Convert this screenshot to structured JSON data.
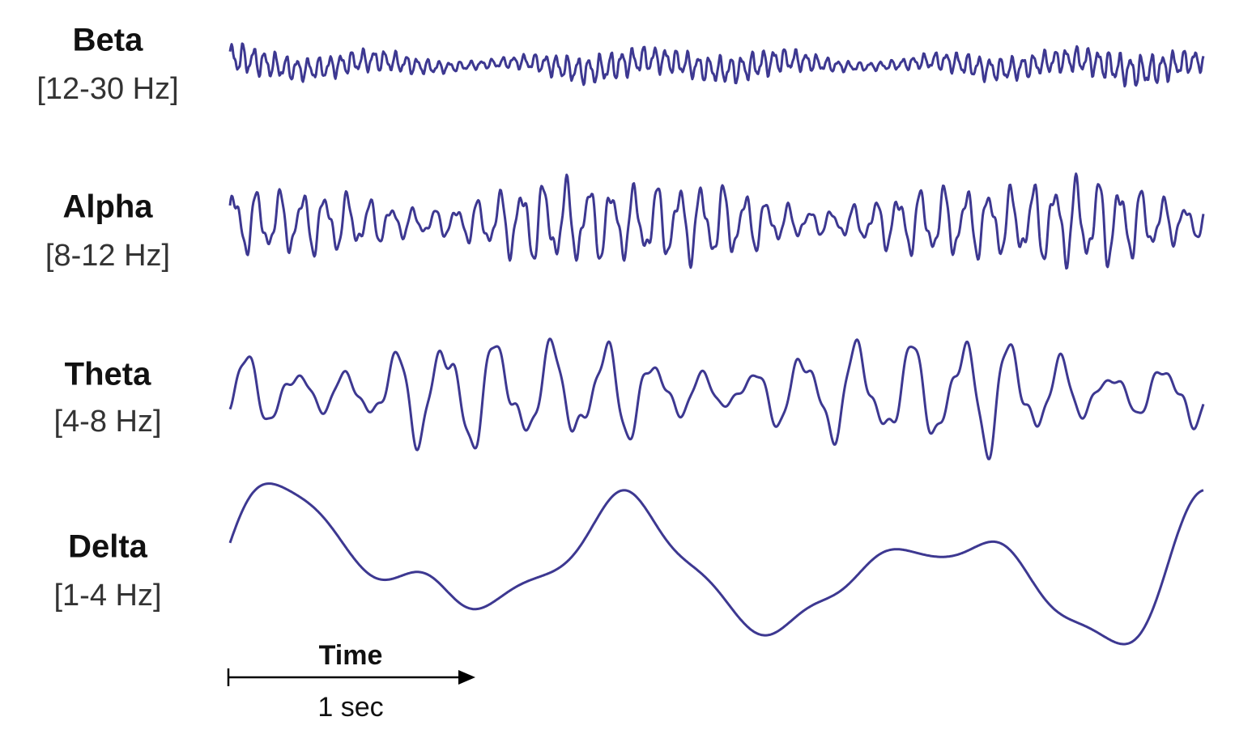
{
  "waves": [
    {
      "name": "Beta",
      "band": "[12-30 Hz]"
    },
    {
      "name": "Alpha",
      "band": "[8-12 Hz]"
    },
    {
      "name": "Theta",
      "band": "[4-8 Hz]"
    },
    {
      "name": "Delta",
      "band": "[1-4 Hz]"
    }
  ],
  "time_label": "Time",
  "scale_label": "1 sec"
}
